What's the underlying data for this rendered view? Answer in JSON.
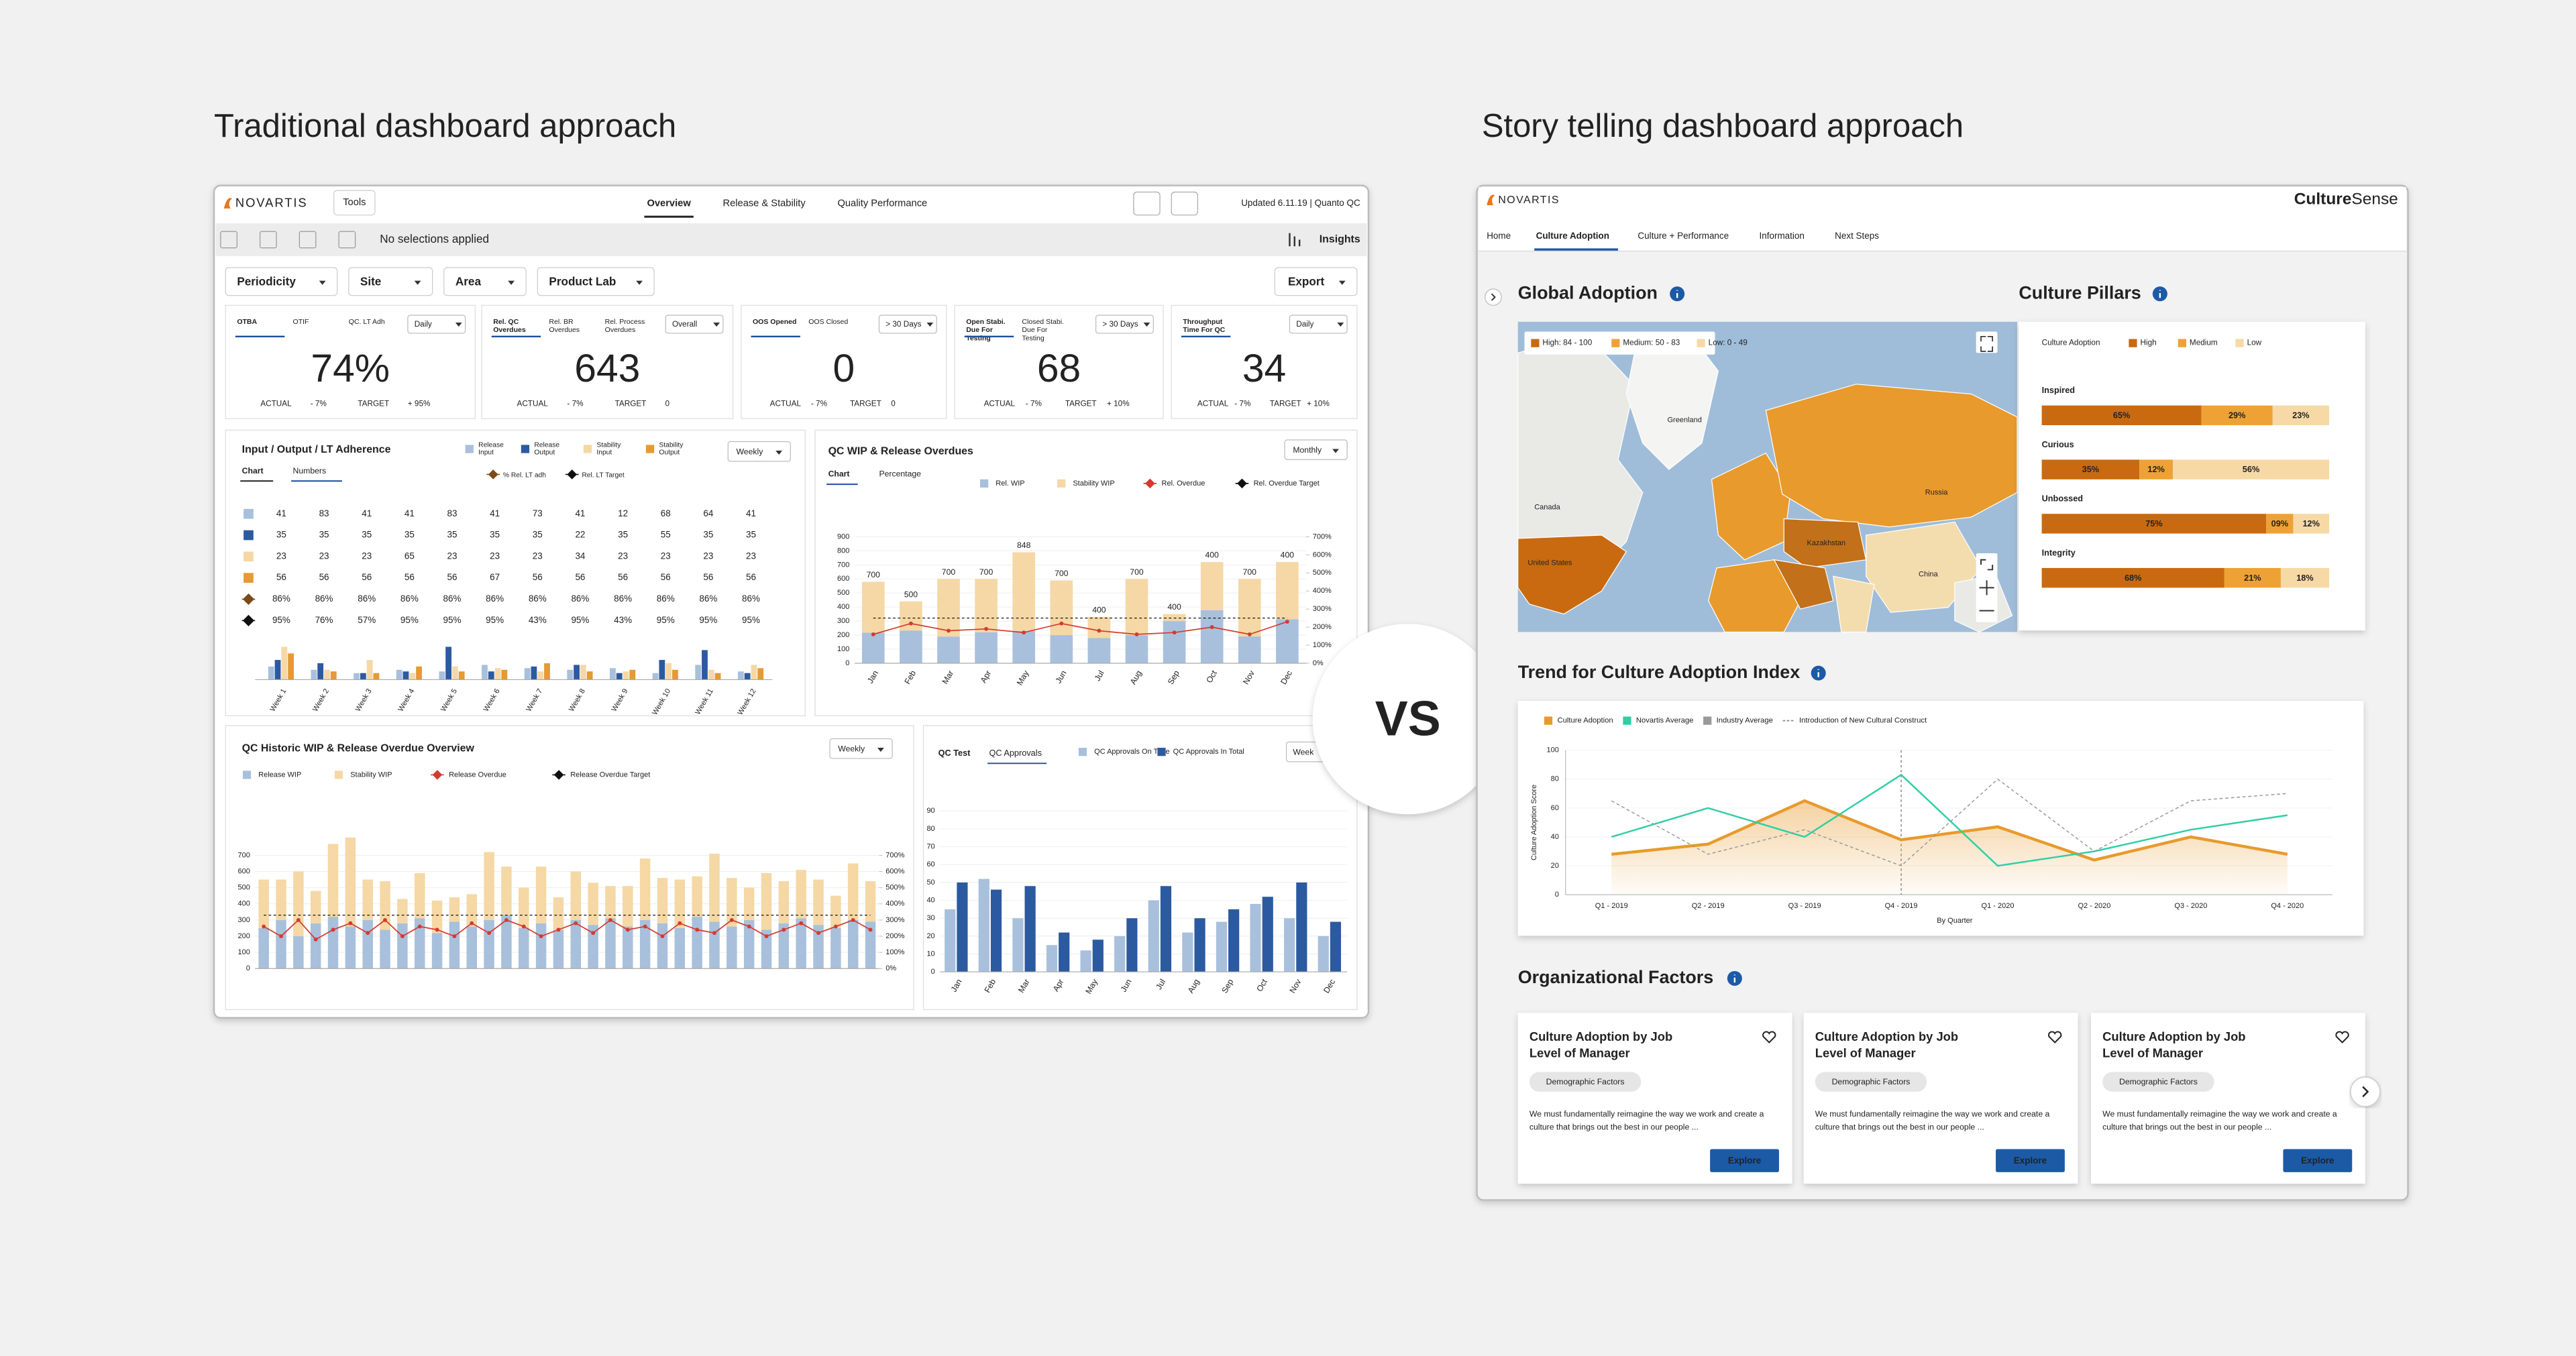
{
  "headings": {
    "left": "Traditional dashboard approach",
    "right": "Story telling dashboard approach",
    "versus": "VS"
  },
  "traditional": {
    "brand": "NOVARTIS",
    "tools": "Tools",
    "tabs": [
      "Overview",
      "Release & Stability",
      "Quality Performance"
    ],
    "updated": "Updated 6.11.19 | Quanto QC",
    "selections": "No selections applied",
    "insights": "Insights",
    "filters": [
      "Periodicity",
      "Site",
      "Area",
      "Product Lab"
    ],
    "export": "Export",
    "kpi_labels": {
      "actual": "ACTUAL",
      "target": "TARGET"
    },
    "kpis": [
      {
        "tabs": [
          "OTBA",
          "OTIF",
          "QC. LT Adh"
        ],
        "dropdown": "Daily",
        "value": "74%",
        "actual": "- 7%",
        "target": "+ 95%"
      },
      {
        "tabs": [
          "Rel. QC Overdues",
          "Rel. BR Overdues",
          "Rel. Process Overdues"
        ],
        "dropdown": "Overall",
        "value": "643",
        "actual": "- 7%",
        "target": "0"
      },
      {
        "tabs": [
          "OOS Opened",
          "OOS Closed"
        ],
        "dropdown": "> 30 Days",
        "value": "0",
        "actual": "- 7%",
        "target": "0"
      },
      {
        "tabs": [
          "Open Stabi. Due For Testing",
          "Closed Stabi. Due For Testing"
        ],
        "dropdown": "> 30 Days",
        "value": "68",
        "actual": "- 7%",
        "target": "+ 10%"
      },
      {
        "tabs": [
          "Throughput Time For QC"
        ],
        "dropdown": "Daily",
        "value": "34",
        "actual": "- 7%",
        "target": "+ 10%"
      }
    ],
    "io": {
      "type": "bar",
      "title": "Input / Output / LT Adherence",
      "tabs": [
        "Chart",
        "Numbers"
      ],
      "dropdown": "Weekly",
      "categories": [
        "Week 1",
        "Week 2",
        "Week 3",
        "Week 4",
        "Week 5",
        "Week 6",
        "Week 7",
        "Week 8",
        "Week 9",
        "Week 10",
        "Week 11",
        "Week 12"
      ],
      "series": [
        {
          "name": "Release Input",
          "color": "#a8c0dc",
          "values": [
            8,
            6,
            4,
            6,
            5,
            9,
            7,
            6,
            7,
            4,
            9,
            5
          ]
        },
        {
          "name": "Release Output",
          "color": "#2c5aa0",
          "values": [
            12,
            10,
            4,
            5,
            20,
            5,
            8,
            9,
            4,
            12,
            18,
            4
          ]
        },
        {
          "name": "Stability Input",
          "color": "#f5d8a5",
          "values": [
            20,
            6,
            12,
            4,
            8,
            7,
            5,
            9,
            5,
            10,
            6,
            9
          ]
        },
        {
          "name": "Stability Output",
          "color": "#e59a33",
          "values": [
            16,
            5,
            4,
            8,
            5,
            6,
            10,
            5,
            6,
            6,
            4,
            7
          ]
        }
      ],
      "markers": [
        {
          "name": "% Rel. LT adh",
          "color": "#7a4a1a"
        },
        {
          "name": "Rel. LT Target",
          "color": "#111111"
        }
      ],
      "rows": [
        [
          41,
          83,
          41,
          41,
          83,
          41,
          73,
          41,
          12,
          68,
          64,
          41
        ],
        [
          35,
          35,
          35,
          35,
          35,
          35,
          35,
          22,
          35,
          55,
          35,
          35
        ],
        [
          23,
          23,
          23,
          65,
          23,
          23,
          23,
          34,
          23,
          23,
          23,
          23
        ],
        [
          56,
          56,
          56,
          56,
          56,
          67,
          56,
          56,
          56,
          56,
          56,
          56
        ],
        [
          "86%",
          "86%",
          "86%",
          "86%",
          "86%",
          "86%",
          "86%",
          "86%",
          "86%",
          "86%",
          "86%",
          "86%"
        ],
        [
          "95%",
          "76%",
          "57%",
          "95%",
          "95%",
          "95%",
          "43%",
          "95%",
          "43%",
          "95%",
          "95%",
          "95%"
        ]
      ]
    },
    "wip": {
      "type": "bar",
      "title": "QC WIP & Release Overdues",
      "tabs": [
        "Chart",
        "Percentage"
      ],
      "dropdown": "Monthly",
      "categories": [
        "Jan",
        "Feb",
        "Mar",
        "Apr",
        "May",
        "Jun",
        "Jul",
        "Aug",
        "Sep",
        "Oct",
        "Nov",
        "Dec"
      ],
      "ylim": [
        0,
        900
      ],
      "yticks": [
        0,
        100,
        200,
        300,
        400,
        500,
        600,
        700,
        800,
        900
      ],
      "y2lim": [
        0,
        700
      ],
      "y2ticks": [
        {
          "value": 0,
          "label": "0%"
        },
        {
          "value": 100,
          "label": "100%"
        },
        {
          "value": 200,
          "label": "200%"
        },
        {
          "value": 300,
          "label": "300%"
        },
        {
          "value": 400,
          "label": "400%"
        },
        {
          "value": 500,
          "label": "500%"
        },
        {
          "value": 600,
          "label": "600%"
        },
        {
          "value": 700,
          "label": "700%"
        }
      ],
      "series": [
        {
          "name": "Rel. WIP",
          "color": "#a8c0dc",
          "values": [
            218,
            233,
            190,
            220,
            230,
            200,
            179,
            200,
            300,
            378,
            191,
            313
          ]
        },
        {
          "name": "Stability WIP",
          "color": "#f5d8a5",
          "values": [
            362,
            207,
            410,
            380,
            560,
            390,
            151,
            400,
            50,
            342,
            409,
            407
          ]
        },
        {
          "name": "Rel. Overdue",
          "color": "#d63a2f",
          "axis": "y2",
          "values": [
            160,
            220,
            180,
            190,
            170,
            220,
            180,
            160,
            170,
            200,
            160,
            230
          ]
        },
        {
          "name": "Rel. Overdue Target",
          "color": "#111111",
          "axis": "y2",
          "values": [
            250,
            250,
            250,
            250,
            250,
            250,
            250,
            250,
            250,
            250,
            250,
            250
          ]
        }
      ],
      "top_labels": [
        "700",
        "500",
        "700",
        "700",
        "848",
        "700",
        "400",
        "700",
        "400",
        "400",
        "700",
        "400"
      ]
    },
    "historic": {
      "type": "bar",
      "title": "QC Historic WIP & Release Overdue Overview",
      "dropdown": "Weekly",
      "ylim": [
        0,
        700
      ],
      "yticks": [
        0,
        100,
        200,
        300,
        400,
        500,
        600,
        700
      ],
      "y2lim": [
        0,
        700
      ],
      "y2ticks": [
        {
          "value": 0,
          "label": "0%"
        },
        {
          "value": 100,
          "label": "100%"
        },
        {
          "value": 200,
          "label": "200%"
        },
        {
          "value": 300,
          "label": "300%"
        },
        {
          "value": 400,
          "label": "400%"
        },
        {
          "value": 500,
          "label": "500%"
        },
        {
          "value": 600,
          "label": "600%"
        },
        {
          "value": 700,
          "label": "700%"
        }
      ],
      "series": [
        {
          "name": "Release WIP",
          "color": "#a8c0dc",
          "values": [
            250,
            300,
            200,
            280,
            320,
            260,
            300,
            240,
            280,
            310,
            220,
            290,
            260,
            300,
            330,
            250,
            280,
            240,
            300,
            270,
            310,
            260,
            300,
            280,
            250,
            320,
            290,
            260,
            300,
            240,
            280,
            310,
            270,
            250,
            300,
            290
          ]
        },
        {
          "name": "Stability WIP",
          "color": "#f5d8a5",
          "values": [
            300,
            250,
            400,
            200,
            450,
            550,
            250,
            300,
            150,
            280,
            200,
            150,
            200,
            420,
            300,
            250,
            350,
            200,
            300,
            260,
            200,
            250,
            380,
            280,
            300,
            250,
            420,
            300,
            200,
            350,
            260,
            300,
            280,
            200,
            350,
            250
          ]
        },
        {
          "name": "Release Overdue",
          "color": "#d63a2f",
          "axis": "y2",
          "values": [
            260,
            200,
            300,
            180,
            240,
            280,
            220,
            300,
            200,
            260,
            240,
            200,
            280,
            220,
            300,
            260,
            200,
            240,
            280,
            220,
            300,
            240,
            260,
            200,
            280,
            240,
            220,
            300,
            260,
            200,
            240,
            280,
            220,
            260,
            300,
            240
          ]
        },
        {
          "name": "Release Overdue Target",
          "color": "#111111",
          "axis": "y2",
          "values": [
            330,
            330,
            330,
            330,
            330,
            330,
            330,
            330,
            330,
            330,
            330,
            330,
            330,
            330,
            330,
            330,
            330,
            330,
            330,
            330,
            330,
            330,
            330,
            330,
            330,
            330,
            330,
            330,
            330,
            330,
            330,
            330,
            330,
            330,
            330,
            330
          ]
        }
      ]
    },
    "approvals": {
      "type": "bar",
      "tabs": [
        "QC Test",
        "QC Approvals"
      ],
      "dropdown": "Week",
      "categories": [
        "Jan",
        "Feb",
        "Mar",
        "Apr",
        "May",
        "Jun",
        "Jul",
        "Aug",
        "Sep",
        "Oct",
        "Nov",
        "Dec"
      ],
      "ylim": [
        0,
        90
      ],
      "yticks": [
        0,
        10,
        20,
        30,
        40,
        50,
        60,
        70,
        80,
        90
      ],
      "series": [
        {
          "name": "QC Approvals On Time",
          "color": "#a8c0dc",
          "values": [
            35,
            52,
            30,
            15,
            12,
            20,
            40,
            22,
            28,
            38,
            30,
            20
          ]
        },
        {
          "name": "QC Approvals In Total",
          "color": "#2c5aa0",
          "values": [
            50,
            46,
            48,
            22,
            18,
            30,
            48,
            30,
            35,
            42,
            50,
            28
          ]
        }
      ]
    }
  },
  "story": {
    "brand": "NOVARTIS",
    "product": {
      "bold": "Culture",
      "light": "Sense"
    },
    "tabs": [
      "Home",
      "Culture Adoption",
      "Culture + Performance",
      "Information",
      "Next Steps"
    ],
    "global": {
      "title": "Global Adoption",
      "legend": [
        "High: 84 - 100",
        "Medium: 50 - 83",
        "Low: 0 - 49"
      ],
      "countries": [
        "Greenland",
        "Canada",
        "United States",
        "Russia",
        "Kazakhstan",
        "China"
      ]
    },
    "pillars": {
      "type": "bar",
      "title": "Culture Pillars",
      "legend_title": "Culture Adoption",
      "categories": [
        "Inspired",
        "Curious",
        "Unbossed",
        "Integrity"
      ],
      "series": [
        {
          "name": "High",
          "color": "#c96a10",
          "values": [
            65,
            35,
            75,
            68
          ],
          "value_labels": [
            "65%",
            "35%",
            "75%",
            "68%"
          ]
        },
        {
          "name": "Medium",
          "color": "#eea235",
          "values": [
            29,
            12,
            9,
            21
          ],
          "value_labels": [
            "29%",
            "12%",
            "09%",
            "21%"
          ]
        },
        {
          "name": "Low",
          "color": "#f7d9a6",
          "values": [
            23,
            56,
            12,
            18
          ],
          "value_labels": [
            "23%",
            "56%",
            "12%",
            "18%"
          ]
        }
      ]
    },
    "trend": {
      "type": "line",
      "title": "Trend for Culture Adoption Index",
      "ylabel": "Culture Adoption Score",
      "xlabel": "By Quarter",
      "categories": [
        "Q1 - 2019",
        "Q2 - 2019",
        "Q3 - 2019",
        "Q4 - 2019",
        "Q1 - 2020",
        "Q2 - 2020",
        "Q3 - 2020",
        "Q4 - 2020"
      ],
      "ylim": [
        0,
        100
      ],
      "yticks": [
        0,
        20,
        40,
        60,
        80,
        100
      ],
      "series": [
        {
          "name": "Culture Adoption",
          "color": "#e89a2c",
          "values": [
            28,
            35,
            65,
            38,
            47,
            24,
            40,
            28
          ]
        },
        {
          "name": "Novartis Average",
          "color": "#2ecfa5",
          "values": [
            40,
            60,
            40,
            83,
            20,
            30,
            45,
            55
          ]
        },
        {
          "name": "Industry Average",
          "color": "#999999",
          "values": [
            65,
            28,
            45,
            20,
            80,
            30,
            65,
            70
          ]
        }
      ],
      "construct": "Introduction of New Cultural Construct"
    },
    "factors": {
      "title": "Organizational Factors",
      "cards": [
        {
          "title": "Culture Adoption by Job Level of Manager",
          "tag": "Demographic Factors",
          "text": "We must fundamentally reimagine the way we work and create a culture that brings out the best in our people ...",
          "button": "Explore"
        },
        {
          "title": "Culture Adoption by Job Level of Manager",
          "tag": "Demographic Factors",
          "text": "We must fundamentally reimagine the way we work and create a culture that brings out the best in our people ...",
          "button": "Explore"
        },
        {
          "title": "Culture Adoption by Job Level of Manager",
          "tag": "Demographic Factors",
          "text": "We must fundamentally reimagine the way we work and create a culture that brings out the best in our people ...",
          "button": "Explore"
        }
      ]
    }
  }
}
